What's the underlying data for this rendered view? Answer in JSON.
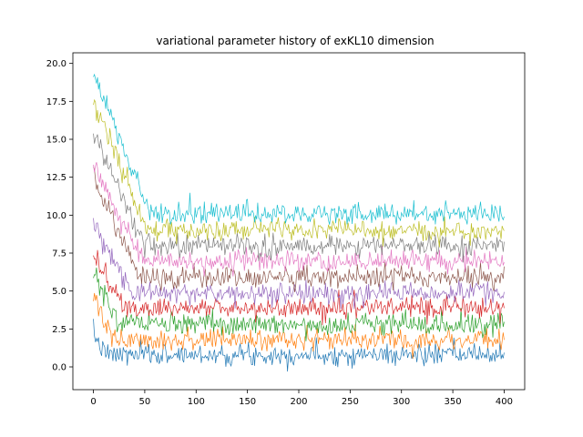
{
  "chart_data": {
    "type": "line",
    "title": "variational parameter history of exKL10 dimension",
    "xlabel": "",
    "ylabel": "",
    "xlim": [
      -20,
      420
    ],
    "ylim": [
      -1.5,
      20.7
    ],
    "x_ticks": [
      0,
      50,
      100,
      150,
      200,
      250,
      300,
      350,
      400
    ],
    "y_ticks": [
      0.0,
      2.5,
      5.0,
      7.5,
      10.0,
      12.5,
      15.0,
      17.5,
      20.0
    ],
    "x_tick_labels": [
      "0",
      "50",
      "100",
      "150",
      "200",
      "250",
      "300",
      "350",
      "400"
    ],
    "y_tick_labels": [
      "0.0",
      "2.5",
      "5.0",
      "7.5",
      "10.0",
      "12.5",
      "15.0",
      "17.5",
      "20.0"
    ],
    "grid": false,
    "legend": "none",
    "x_range": [
      0,
      400
    ],
    "noise_seed": 7,
    "series": [
      {
        "color": "#1f77b4",
        "start": 2.2,
        "steady": 0.8,
        "decay_end": 12,
        "noise": 0.35
      },
      {
        "color": "#ff7f0e",
        "start": 4.8,
        "steady": 1.8,
        "decay_end": 18,
        "noise": 0.35
      },
      {
        "color": "#2ca02c",
        "start": 6.3,
        "steady": 2.8,
        "decay_end": 25,
        "noise": 0.35
      },
      {
        "color": "#d62728",
        "start": 7.5,
        "steady": 3.9,
        "decay_end": 30,
        "noise": 0.35
      },
      {
        "color": "#9467bd",
        "start": 9.5,
        "steady": 4.9,
        "decay_end": 38,
        "noise": 0.35
      },
      {
        "color": "#8c564b",
        "start": 12.5,
        "steady": 5.9,
        "decay_end": 45,
        "noise": 0.35
      },
      {
        "color": "#e377c2",
        "start": 13.3,
        "steady": 7.0,
        "decay_end": 48,
        "noise": 0.35
      },
      {
        "color": "#7f7f7f",
        "start": 15.6,
        "steady": 8.0,
        "decay_end": 50,
        "noise": 0.35
      },
      {
        "color": "#bcbd22",
        "start": 17.5,
        "steady": 9.0,
        "decay_end": 52,
        "noise": 0.35
      },
      {
        "color": "#17becf",
        "start": 19.4,
        "steady": 10.1,
        "decay_end": 55,
        "noise": 0.35
      }
    ]
  }
}
